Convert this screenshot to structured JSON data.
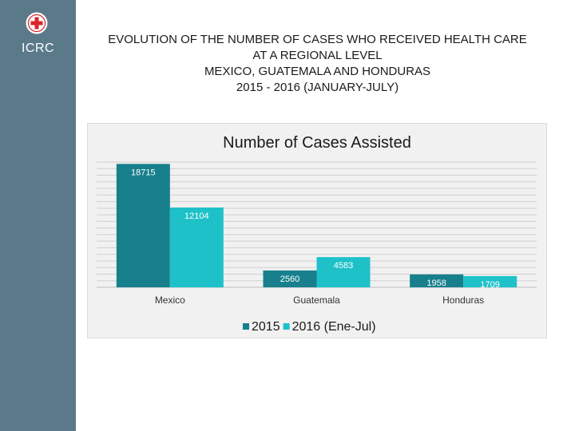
{
  "sidebar": {
    "org": "ICRC",
    "logo_icon": "red-cross-icon"
  },
  "title_lines": [
    "EVOLUTION OF THE NUMBER OF CASES WHO RECEIVED HEALTH CARE",
    "AT A REGIONAL LEVEL",
    "MEXICO, GUATEMALA AND HONDURAS",
    "2015 - 2016 (JANUARY-JULY)"
  ],
  "colors": {
    "sidebar": "#5a7a8a",
    "series_2015": "#17808c",
    "series_2016": "#1fc1c9",
    "cross": "#d7262d"
  },
  "chart_data": {
    "type": "bar",
    "title": "Number of Cases Assisted",
    "categories": [
      "Mexico",
      "Guatemala",
      "Honduras"
    ],
    "series": [
      {
        "name": "2015",
        "values": [
          18715,
          2560,
          1958
        ]
      },
      {
        "name": "2016 (Ene-Jul)",
        "values": [
          12104,
          4583,
          1709
        ]
      }
    ],
    "ylim": [
      0,
      19000
    ],
    "grid": true,
    "legend": "bottom"
  }
}
